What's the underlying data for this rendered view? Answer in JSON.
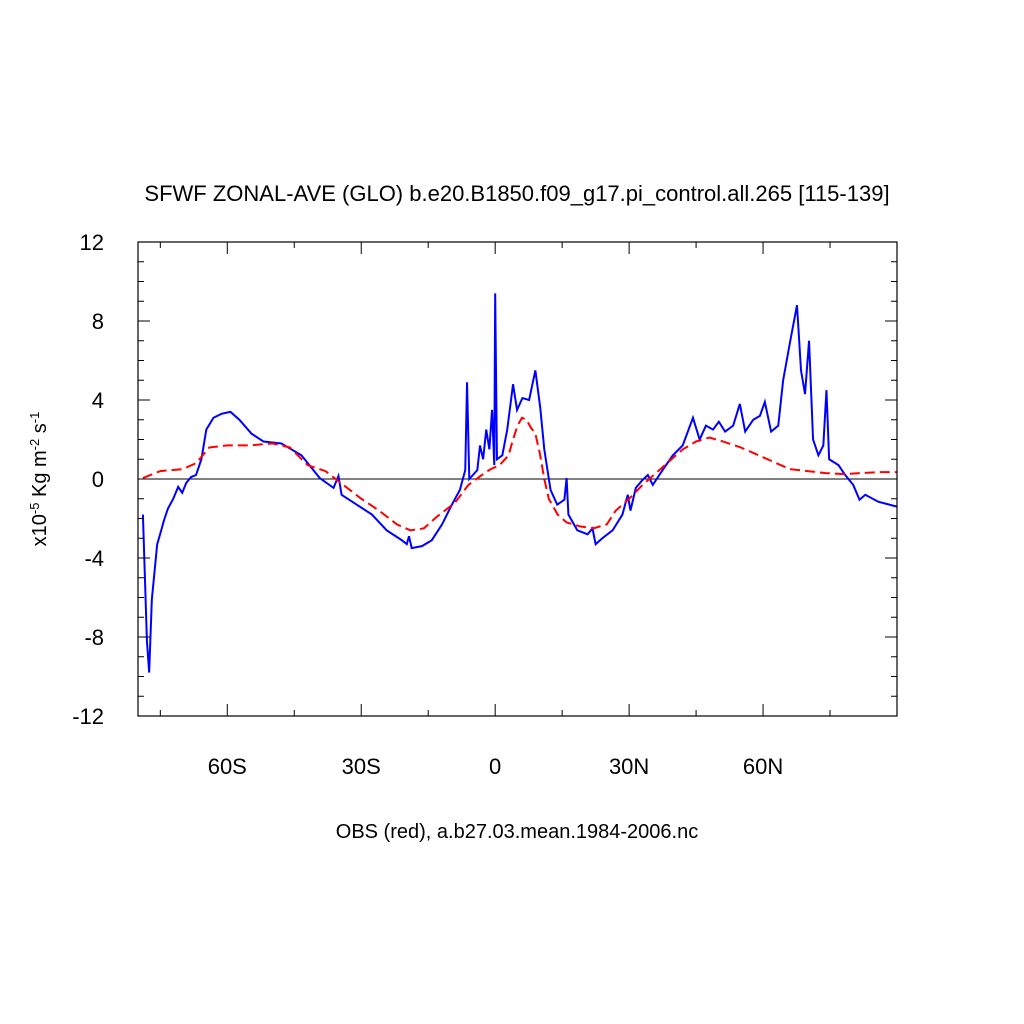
{
  "chart_data": {
    "type": "line",
    "title": "SFWF ZONAL-AVE (GLO) b.e20.B1850.f09_g17.pi_control.all.265 [115-139]",
    "xlabel": "OBS (red), a.b27.03.mean.1984-2006.nc",
    "ylabel": [
      {
        "text": "x10"
      },
      {
        "text": "-5",
        "sup": true
      },
      {
        "text": " Kg m"
      },
      {
        "text": "-2",
        "sup": true
      },
      {
        "text": " s"
      },
      {
        "text": "-1",
        "sup": true
      }
    ],
    "xlim": [
      -80,
      90
    ],
    "ylim": [
      -12,
      12
    ],
    "xticks": [
      {
        "value": -60,
        "label": "60S"
      },
      {
        "value": -30,
        "label": "30S"
      },
      0,
      {
        "value": 30,
        "label": "30N"
      },
      {
        "value": 60,
        "label": "60N"
      }
    ],
    "xminorticks": [
      -75,
      -45,
      -15,
      15,
      45,
      75
    ],
    "yticks": [
      -12,
      -8,
      -4,
      0,
      4,
      8,
      12
    ],
    "yminorticks": [
      -11,
      -10,
      -9,
      -7,
      -6,
      -5,
      -3,
      -2,
      -1,
      1,
      2,
      3,
      5,
      6,
      7,
      9,
      10,
      11
    ],
    "zero_line": true,
    "series": [
      {
        "color": "#0000ff",
        "dash": false,
        "x": [
          -78.9,
          -78,
          -77.5,
          -76.9,
          -75.7,
          -74.8,
          -74.2,
          -73.3,
          -72.1,
          -71,
          -70.1,
          -69.2,
          -68.1,
          -67,
          -65.8,
          -64.7,
          -63.1,
          -61.3,
          -59.3,
          -57.3,
          -54.6,
          -51.9,
          -47.9,
          -43.4,
          -39.3,
          -36.2,
          -35.1,
          -34.4,
          -31,
          -27.6,
          -24.3,
          -20.9,
          -19.8,
          -19.3,
          -18.7,
          -16.4,
          -14.2,
          -11.9,
          -9.7,
          -7.9,
          -6.7,
          -6.3,
          -5.8,
          -4,
          -3.4,
          -2.7,
          -2,
          -1.3,
          -0.7,
          -0.2,
          0,
          0.4,
          1.6,
          2.7,
          4,
          4.9,
          6.1,
          7.6,
          9,
          10.1,
          11,
          12.4,
          13.9,
          15.5,
          16,
          16.4,
          18.4,
          20.7,
          21.8,
          22.5,
          24,
          26.3,
          28.5,
          29.7,
          30.3,
          31.5,
          33,
          34.2,
          35.3,
          37.5,
          39.8,
          42,
          44.3,
          45.8,
          47.2,
          48.8,
          50.1,
          51.5,
          53.3,
          54.8,
          56,
          57.8,
          59.3,
          60.4,
          61.8,
          63.4,
          64.5,
          66.1,
          67.6,
          68.5,
          69.4,
          70.3,
          71.2,
          72.4,
          73.5,
          74.2,
          74.8,
          76.9,
          78.4,
          80.2,
          81.6,
          82.9,
          85.8,
          90
        ],
        "values": [
          -1.8,
          -8.2,
          -9.8,
          -6.1,
          -3.3,
          -2.6,
          -2.1,
          -1.5,
          -1.0,
          -0.4,
          -0.7,
          -0.2,
          0.1,
          0.2,
          1.0,
          2.5,
          3.1,
          3.3,
          3.4,
          3.0,
          2.3,
          1.9,
          1.8,
          1.2,
          0.05,
          -0.45,
          0.15,
          -0.8,
          -1.3,
          -1.8,
          -2.6,
          -3.1,
          -3.3,
          -2.9,
          -3.5,
          -3.4,
          -3.1,
          -2.3,
          -1.3,
          -0.55,
          0.45,
          4.9,
          0,
          0.45,
          1.7,
          1.0,
          2.5,
          1.5,
          3.5,
          0.7,
          9.4,
          1.0,
          1.2,
          2.5,
          4.8,
          3.5,
          4.1,
          4.0,
          5.5,
          3.6,
          1.5,
          -0.55,
          -1.3,
          -1.05,
          0.05,
          -1.8,
          -2.6,
          -2.8,
          -2.5,
          -3.3,
          -3.0,
          -2.6,
          -1.8,
          -0.8,
          -1.6,
          -0.45,
          -0.05,
          0.2,
          -0.3,
          0.45,
          1.2,
          1.7,
          3.1,
          2.0,
          2.7,
          2.5,
          2.9,
          2.4,
          2.7,
          3.8,
          2.4,
          3.0,
          3.2,
          3.9,
          2.4,
          2.7,
          5.0,
          7.0,
          8.8,
          5.5,
          4.3,
          7.0,
          2.0,
          1.2,
          1.7,
          4.5,
          1.0,
          0.7,
          0.2,
          -0.3,
          -1.05,
          -0.8,
          -1.15,
          -1.4
        ]
      },
      {
        "color": "#ff0000",
        "dash": true,
        "x": [
          -78.9,
          -75,
          -70,
          -67,
          -64,
          -60,
          -55,
          -50,
          -46,
          -42,
          -38,
          -34,
          -30,
          -26,
          -22,
          -19,
          -16,
          -13,
          -9,
          -6,
          -3,
          -1,
          1,
          3,
          4,
          5,
          6,
          7,
          8,
          9,
          10,
          11,
          12,
          14,
          16,
          19,
          22,
          25,
          27,
          30,
          33,
          36,
          39,
          42,
          45,
          48,
          51,
          55,
          58,
          62,
          66,
          70,
          74,
          78,
          82,
          86,
          90
        ],
        "values": [
          0.05,
          0.4,
          0.5,
          0.8,
          1.6,
          1.7,
          1.7,
          1.8,
          1.6,
          0.7,
          0.4,
          -0.3,
          -1.0,
          -1.6,
          -2.3,
          -2.6,
          -2.5,
          -1.9,
          -1.2,
          -0.3,
          0.2,
          0.5,
          0.7,
          1.2,
          2.0,
          2.7,
          3.1,
          3.0,
          2.6,
          2.3,
          1.3,
          0.0,
          -1.0,
          -1.8,
          -2.2,
          -2.4,
          -2.5,
          -2.3,
          -1.6,
          -1.0,
          -0.3,
          0.3,
          0.9,
          1.5,
          1.9,
          2.1,
          1.9,
          1.6,
          1.3,
          0.9,
          0.5,
          0.4,
          0.3,
          0.25,
          0.3,
          0.35,
          0.35
        ]
      }
    ]
  }
}
